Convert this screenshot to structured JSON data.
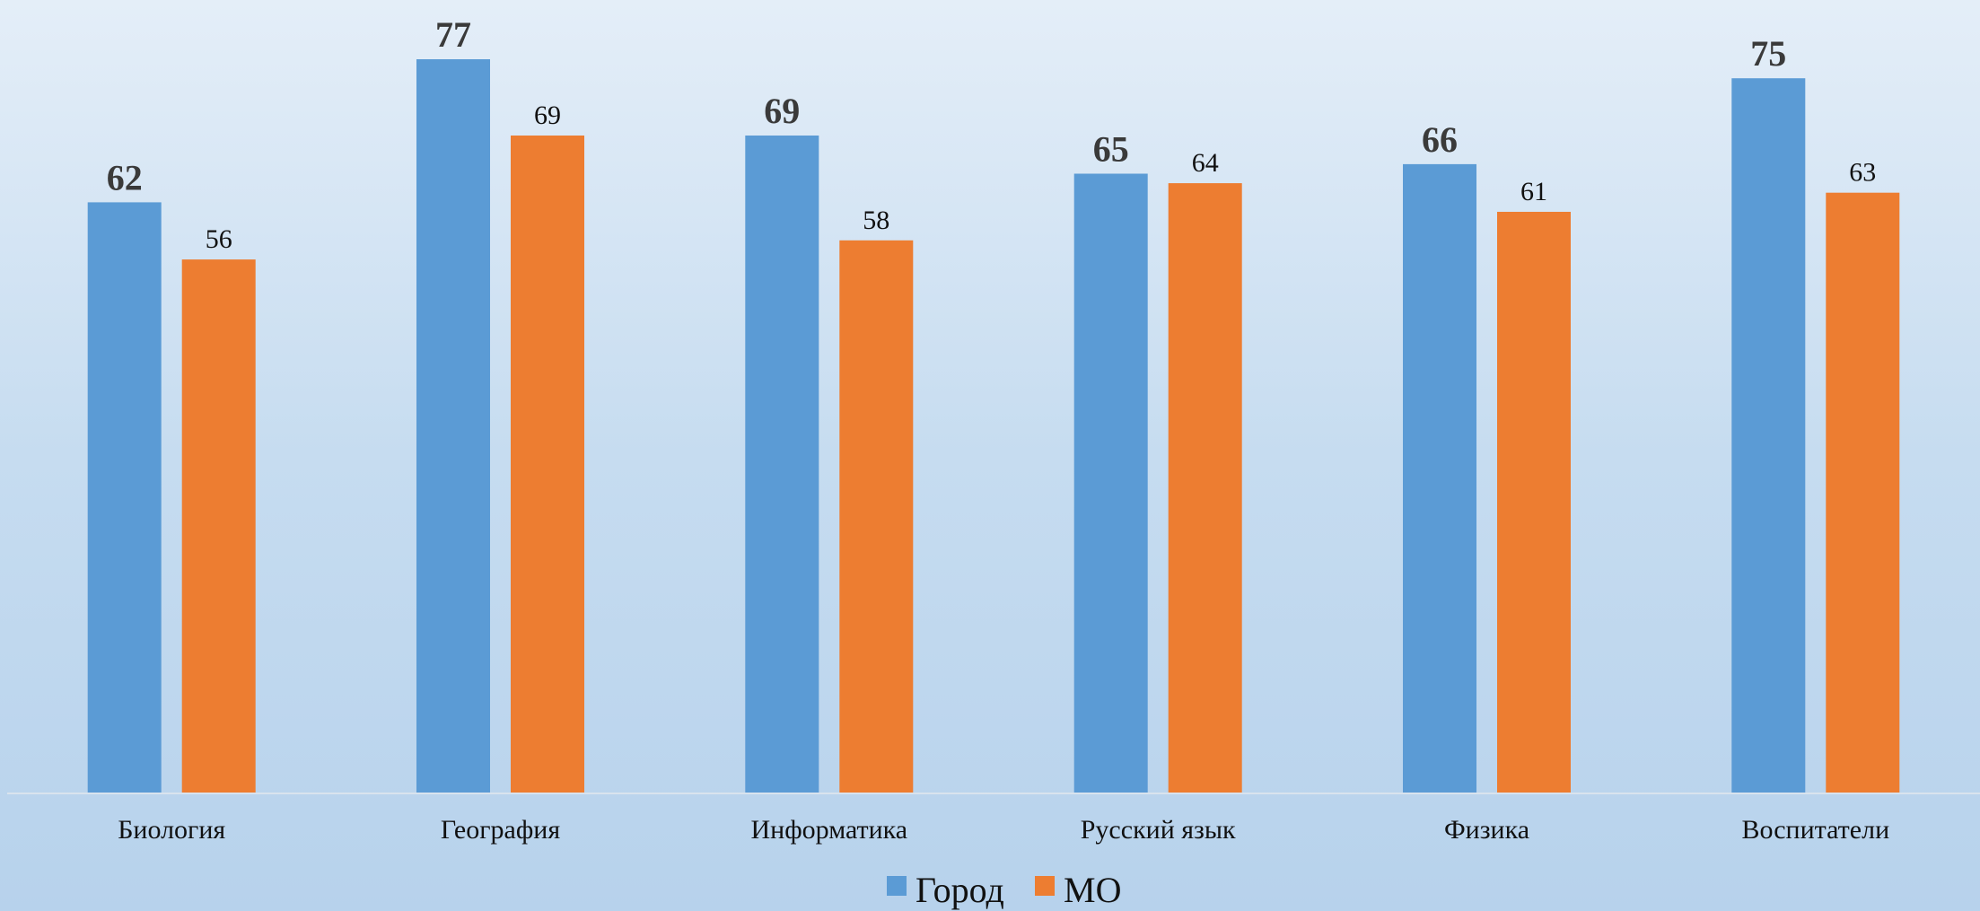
{
  "chart_data": {
    "type": "bar",
    "title": "",
    "xlabel": "",
    "ylabel": "",
    "categories": [
      "Биология",
      "География",
      "Информатика",
      "Русский язык",
      "Физика",
      "Воспитатели"
    ],
    "series": [
      {
        "name": "Город",
        "color": "#5b9bd5",
        "values": [
          62,
          77,
          69,
          65,
          66,
          75
        ]
      },
      {
        "name": "МО",
        "color": "#ed7d31",
        "values": [
          56,
          69,
          58,
          64,
          61,
          63
        ]
      }
    ],
    "ylim": [
      0,
      80
    ],
    "grid": false,
    "legend": "bottom-center",
    "data_labels": true
  }
}
